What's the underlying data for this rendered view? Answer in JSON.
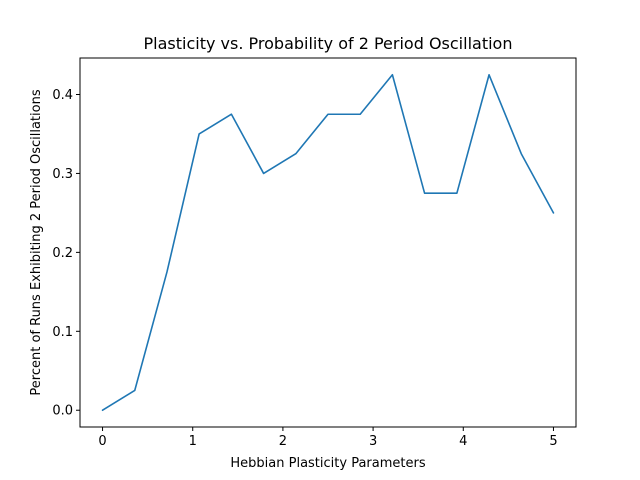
{
  "chart_data": {
    "type": "line",
    "title": "Plasticity vs. Probability of 2 Period Oscillation",
    "xlabel": "Hebbian Plasticity Parameters",
    "ylabel": "Percent of Runs Exhibiting 2 Period Oscillations",
    "xlim": [
      -0.25,
      5.25
    ],
    "ylim": [
      -0.02125,
      0.44625
    ],
    "xticks": [
      0,
      1,
      2,
      3,
      4,
      5
    ],
    "xtick_labels": [
      "0",
      "1",
      "2",
      "3",
      "4",
      "5"
    ],
    "yticks": [
      0.0,
      0.1,
      0.2,
      0.3,
      0.4
    ],
    "ytick_labels": [
      "0.0",
      "0.1",
      "0.2",
      "0.3",
      "0.4"
    ],
    "grid": false,
    "series": [
      {
        "color": "#1f77b4",
        "x": [
          0,
          0.357,
          0.714,
          1.071,
          1.429,
          1.786,
          2.143,
          2.5,
          2.857,
          3.214,
          3.571,
          3.929,
          4.286,
          4.643,
          5.0
        ],
        "y": [
          0.0,
          0.025,
          0.175,
          0.35,
          0.375,
          0.3,
          0.325,
          0.375,
          0.375,
          0.425,
          0.275,
          0.275,
          0.425,
          0.325,
          0.25
        ]
      }
    ]
  }
}
